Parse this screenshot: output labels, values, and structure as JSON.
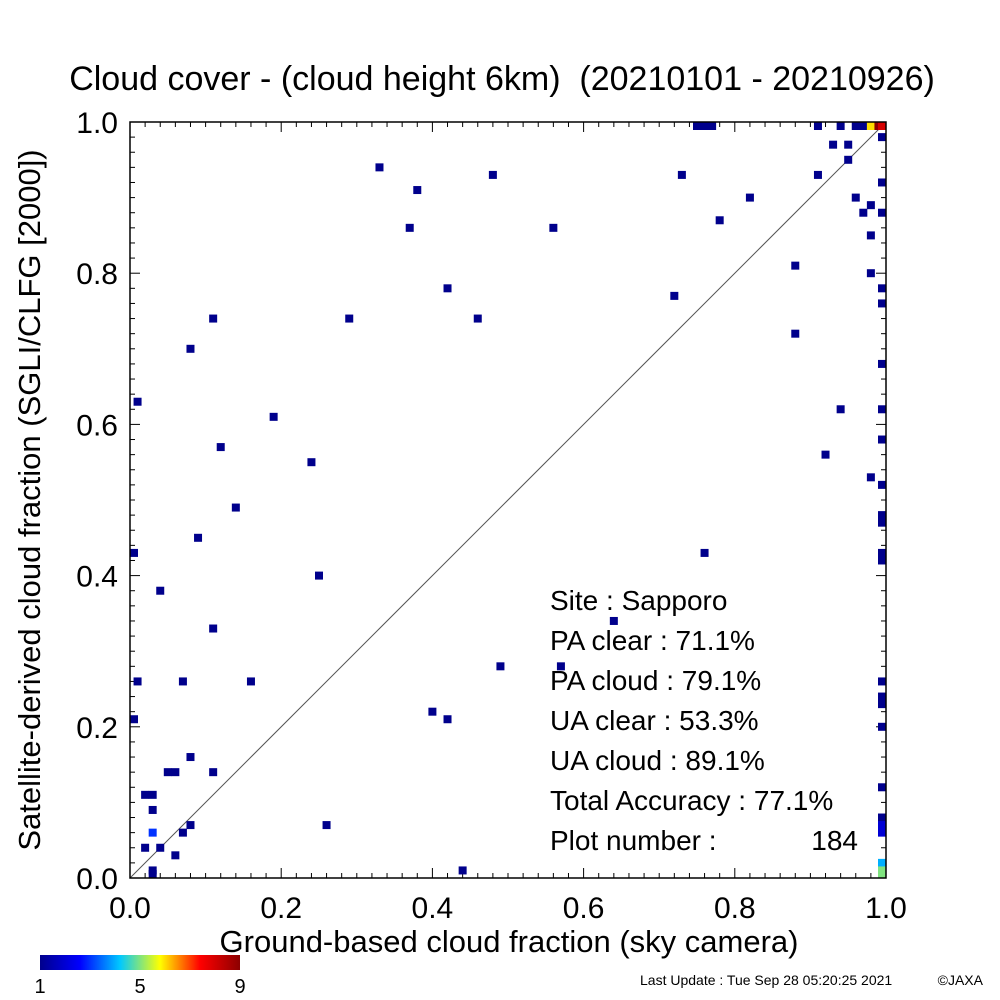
{
  "chart_data": {
    "type": "heatmap",
    "title": "Cloud cover - (cloud height 6km)  (20210101 - 20210926)",
    "xlabel": "Ground-based cloud fraction (sky camera)",
    "ylabel": "Satellite-derived cloud fraction (SGLI/CLFG [2000])",
    "xlim": [
      0,
      1
    ],
    "ylim": [
      0,
      1
    ],
    "x_ticks": [
      "0.0",
      "0.2",
      "0.4",
      "0.6",
      "0.8",
      "1.0"
    ],
    "y_ticks": [
      "0.0",
      "0.2",
      "0.4",
      "0.6",
      "0.8",
      "1.0"
    ],
    "diagonal_reference_line": true,
    "grid": false,
    "colorbar": {
      "min": 1,
      "max": 9,
      "tick_labels": [
        "1",
        "5",
        "9"
      ],
      "colors": [
        "#00008c",
        "#0000ff",
        "#00c8ff",
        "#ffff00",
        "#ff0000",
        "#8c0000"
      ]
    },
    "stats": [
      {
        "label": "Site : Sapporo",
        "value": ""
      },
      {
        "label": "PA clear :",
        "value": "71.1%"
      },
      {
        "label": "PA cloud :",
        "value": "79.1%"
      },
      {
        "label": "UA clear :",
        "value": "53.3%"
      },
      {
        "label": "UA cloud :",
        "value": "89.1%"
      },
      {
        "label": "Total Accuracy :",
        "value": "77.1%"
      },
      {
        "label": "Plot number :",
        "value": "184"
      }
    ],
    "points": [
      {
        "x": 0.0,
        "y": 0.43,
        "n": 1
      },
      {
        "x": 0.0,
        "y": 0.21,
        "n": 1
      },
      {
        "x": 0.01,
        "y": 0.63,
        "n": 1
      },
      {
        "x": 0.01,
        "y": 0.26,
        "n": 1
      },
      {
        "x": 0.02,
        "y": 0.11,
        "n": 1
      },
      {
        "x": 0.03,
        "y": 0.11,
        "n": 1
      },
      {
        "x": 0.03,
        "y": 0.09,
        "n": 1
      },
      {
        "x": 0.03,
        "y": 0.06,
        "n": 3
      },
      {
        "x": 0.02,
        "y": 0.04,
        "n": 1
      },
      {
        "x": 0.03,
        "y": 0.01,
        "n": 1
      },
      {
        "x": 0.03,
        "y": 0.0,
        "n": 1
      },
      {
        "x": 0.04,
        "y": 0.04,
        "n": 1
      },
      {
        "x": 0.04,
        "y": 0.38,
        "n": 1
      },
      {
        "x": 0.05,
        "y": 0.14,
        "n": 1
      },
      {
        "x": 0.06,
        "y": 0.14,
        "n": 1
      },
      {
        "x": 0.06,
        "y": 0.03,
        "n": 1
      },
      {
        "x": 0.07,
        "y": 0.26,
        "n": 1
      },
      {
        "x": 0.07,
        "y": 0.06,
        "n": 1
      },
      {
        "x": 0.08,
        "y": 0.07,
        "n": 1
      },
      {
        "x": 0.08,
        "y": 0.16,
        "n": 1
      },
      {
        "x": 0.08,
        "y": 0.7,
        "n": 1
      },
      {
        "x": 0.09,
        "y": 0.45,
        "n": 1
      },
      {
        "x": 0.11,
        "y": 0.74,
        "n": 1
      },
      {
        "x": 0.11,
        "y": 0.33,
        "n": 1
      },
      {
        "x": 0.11,
        "y": 0.14,
        "n": 1
      },
      {
        "x": 0.12,
        "y": 0.57,
        "n": 1
      },
      {
        "x": 0.14,
        "y": 0.49,
        "n": 1
      },
      {
        "x": 0.16,
        "y": 0.26,
        "n": 1
      },
      {
        "x": 0.19,
        "y": 0.61,
        "n": 1
      },
      {
        "x": 0.24,
        "y": 0.55,
        "n": 1
      },
      {
        "x": 0.25,
        "y": 0.4,
        "n": 1
      },
      {
        "x": 0.26,
        "y": 0.07,
        "n": 1
      },
      {
        "x": 0.29,
        "y": 0.74,
        "n": 1
      },
      {
        "x": 0.33,
        "y": 0.94,
        "n": 1
      },
      {
        "x": 0.37,
        "y": 0.86,
        "n": 1
      },
      {
        "x": 0.38,
        "y": 0.91,
        "n": 1
      },
      {
        "x": 0.4,
        "y": 0.22,
        "n": 1
      },
      {
        "x": 0.42,
        "y": 0.78,
        "n": 1
      },
      {
        "x": 0.42,
        "y": 0.21,
        "n": 1
      },
      {
        "x": 0.44,
        "y": 0.01,
        "n": 1
      },
      {
        "x": 0.46,
        "y": 0.74,
        "n": 1
      },
      {
        "x": 0.48,
        "y": 0.93,
        "n": 1
      },
      {
        "x": 0.49,
        "y": 0.28,
        "n": 1
      },
      {
        "x": 0.56,
        "y": 0.86,
        "n": 1
      },
      {
        "x": 0.57,
        "y": 0.28,
        "n": 1
      },
      {
        "x": 0.64,
        "y": 0.34,
        "n": 1
      },
      {
        "x": 0.72,
        "y": 0.77,
        "n": 1
      },
      {
        "x": 0.73,
        "y": 0.93,
        "n": 1
      },
      {
        "x": 0.76,
        "y": 0.43,
        "n": 1
      },
      {
        "x": 0.75,
        "y": 1.0,
        "n": 1
      },
      {
        "x": 0.76,
        "y": 1.0,
        "n": 1
      },
      {
        "x": 0.77,
        "y": 1.0,
        "n": 1
      },
      {
        "x": 0.78,
        "y": 0.87,
        "n": 1
      },
      {
        "x": 0.82,
        "y": 0.9,
        "n": 1
      },
      {
        "x": 0.88,
        "y": 0.81,
        "n": 1
      },
      {
        "x": 0.88,
        "y": 0.72,
        "n": 1
      },
      {
        "x": 0.91,
        "y": 1.0,
        "n": 1
      },
      {
        "x": 0.91,
        "y": 0.93,
        "n": 1
      },
      {
        "x": 0.92,
        "y": 0.56,
        "n": 1
      },
      {
        "x": 0.93,
        "y": 0.97,
        "n": 1
      },
      {
        "x": 0.94,
        "y": 0.62,
        "n": 1
      },
      {
        "x": 0.94,
        "y": 1.0,
        "n": 1
      },
      {
        "x": 0.95,
        "y": 0.97,
        "n": 1
      },
      {
        "x": 0.95,
        "y": 0.95,
        "n": 1
      },
      {
        "x": 0.96,
        "y": 0.9,
        "n": 1
      },
      {
        "x": 0.96,
        "y": 1.0,
        "n": 1
      },
      {
        "x": 0.97,
        "y": 0.88,
        "n": 1
      },
      {
        "x": 0.97,
        "y": 1.0,
        "n": 1
      },
      {
        "x": 0.98,
        "y": 0.89,
        "n": 1
      },
      {
        "x": 0.98,
        "y": 0.85,
        "n": 1
      },
      {
        "x": 0.98,
        "y": 0.8,
        "n": 1
      },
      {
        "x": 0.98,
        "y": 0.53,
        "n": 1
      },
      {
        "x": 0.98,
        "y": 1.0,
        "n": 6
      },
      {
        "x": 0.99,
        "y": 1.0,
        "n": 9
      },
      {
        "x": 1.0,
        "y": 1.0,
        "n": 8
      },
      {
        "x": 1.0,
        "y": 0.98,
        "n": 1
      },
      {
        "x": 1.0,
        "y": 0.92,
        "n": 1
      },
      {
        "x": 1.0,
        "y": 0.88,
        "n": 1
      },
      {
        "x": 1.0,
        "y": 0.78,
        "n": 1
      },
      {
        "x": 1.0,
        "y": 0.76,
        "n": 1
      },
      {
        "x": 1.0,
        "y": 0.68,
        "n": 1
      },
      {
        "x": 1.0,
        "y": 0.62,
        "n": 1
      },
      {
        "x": 1.0,
        "y": 0.58,
        "n": 1
      },
      {
        "x": 1.0,
        "y": 0.52,
        "n": 1
      },
      {
        "x": 1.0,
        "y": 0.48,
        "n": 1
      },
      {
        "x": 1.0,
        "y": 0.47,
        "n": 1
      },
      {
        "x": 1.0,
        "y": 0.43,
        "n": 1
      },
      {
        "x": 1.0,
        "y": 0.42,
        "n": 1
      },
      {
        "x": 1.0,
        "y": 0.26,
        "n": 1
      },
      {
        "x": 1.0,
        "y": 0.24,
        "n": 1
      },
      {
        "x": 1.0,
        "y": 0.23,
        "n": 1
      },
      {
        "x": 1.0,
        "y": 0.2,
        "n": 1
      },
      {
        "x": 1.0,
        "y": 0.12,
        "n": 1
      },
      {
        "x": 1.0,
        "y": 0.08,
        "n": 1
      },
      {
        "x": 1.0,
        "y": 0.07,
        "n": 2
      },
      {
        "x": 1.0,
        "y": 0.06,
        "n": 2
      },
      {
        "x": 1.0,
        "y": 0.02,
        "n": 4
      },
      {
        "x": 1.0,
        "y": 0.01,
        "n": 5
      },
      {
        "x": 1.0,
        "y": 0.0,
        "n": 5
      }
    ]
  },
  "footer": {
    "last_update": "Last Update : Tue Sep 28 05:20:25 2021",
    "copyright": "©JAXA"
  }
}
